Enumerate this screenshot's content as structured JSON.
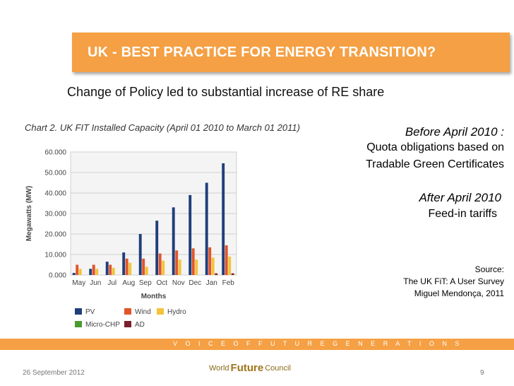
{
  "slide": {
    "title": "UK - BEST PRACTICE FOR ENERGY TRANSITION?",
    "subtitle": "Change of Policy led to substantial increase of RE share",
    "before_heading": "Before April 2010 :",
    "before_line1": "Quota obligations based on",
    "before_line2": "Tradable Green Certificates",
    "after_heading": "After April 2010",
    "after_line1": "Feed-in tariffs",
    "source_label": "Source:",
    "source_line1": "The UK FiT: A User Survey",
    "source_line2": "Miguel Mendonça, 2011",
    "footer_tagline": "V O I C E  O F  F U T U R E  G E N E R A T I O N S",
    "date": "26 September 2012",
    "page_number": "9",
    "logo": {
      "part1": "World",
      "part2": "Future",
      "part3": "Council"
    }
  },
  "chart_data": {
    "type": "bar",
    "title": "Chart 2. UK FIT Installed Capacity (April 01 2010 to March 01 2011)",
    "xlabel": "Months",
    "ylabel": "Megawatts (MW)",
    "ylim": [
      0,
      60000
    ],
    "yticks": [
      "0.000",
      "10.000",
      "20.000",
      "30.000",
      "40.000",
      "50.000",
      "60.000"
    ],
    "categories": [
      "May",
      "Jun",
      "Jul",
      "Aug",
      "Sep",
      "Oct",
      "Nov",
      "Dec",
      "Jan",
      "Feb"
    ],
    "series": [
      {
        "name": "PV",
        "color": "#1f3f7a",
        "values": [
          1000,
          3000,
          6500,
          11000,
          20000,
          26500,
          33000,
          39000,
          45000,
          54500
        ]
      },
      {
        "name": "Wind",
        "color": "#e2542b",
        "values": [
          5000,
          5000,
          5000,
          8000,
          8000,
          10500,
          12000,
          13000,
          13500,
          14500
        ]
      },
      {
        "name": "Hydro",
        "color": "#f2c43a",
        "values": [
          3000,
          3000,
          3500,
          6000,
          4000,
          7000,
          7500,
          7500,
          8500,
          9000
        ]
      },
      {
        "name": "Micro-CHP",
        "color": "#4a9b2f",
        "values": [
          0,
          0,
          0,
          0,
          0,
          0,
          0,
          0,
          0,
          0
        ]
      },
      {
        "name": "AD",
        "color": "#7a1f2a",
        "values": [
          0,
          0,
          0,
          0,
          0,
          0,
          0,
          0,
          800,
          800
        ]
      }
    ],
    "legend": [
      "PV",
      "Wind",
      "Hydro",
      "Micro-CHP",
      "AD"
    ],
    "legend_position": "bottom-left"
  }
}
